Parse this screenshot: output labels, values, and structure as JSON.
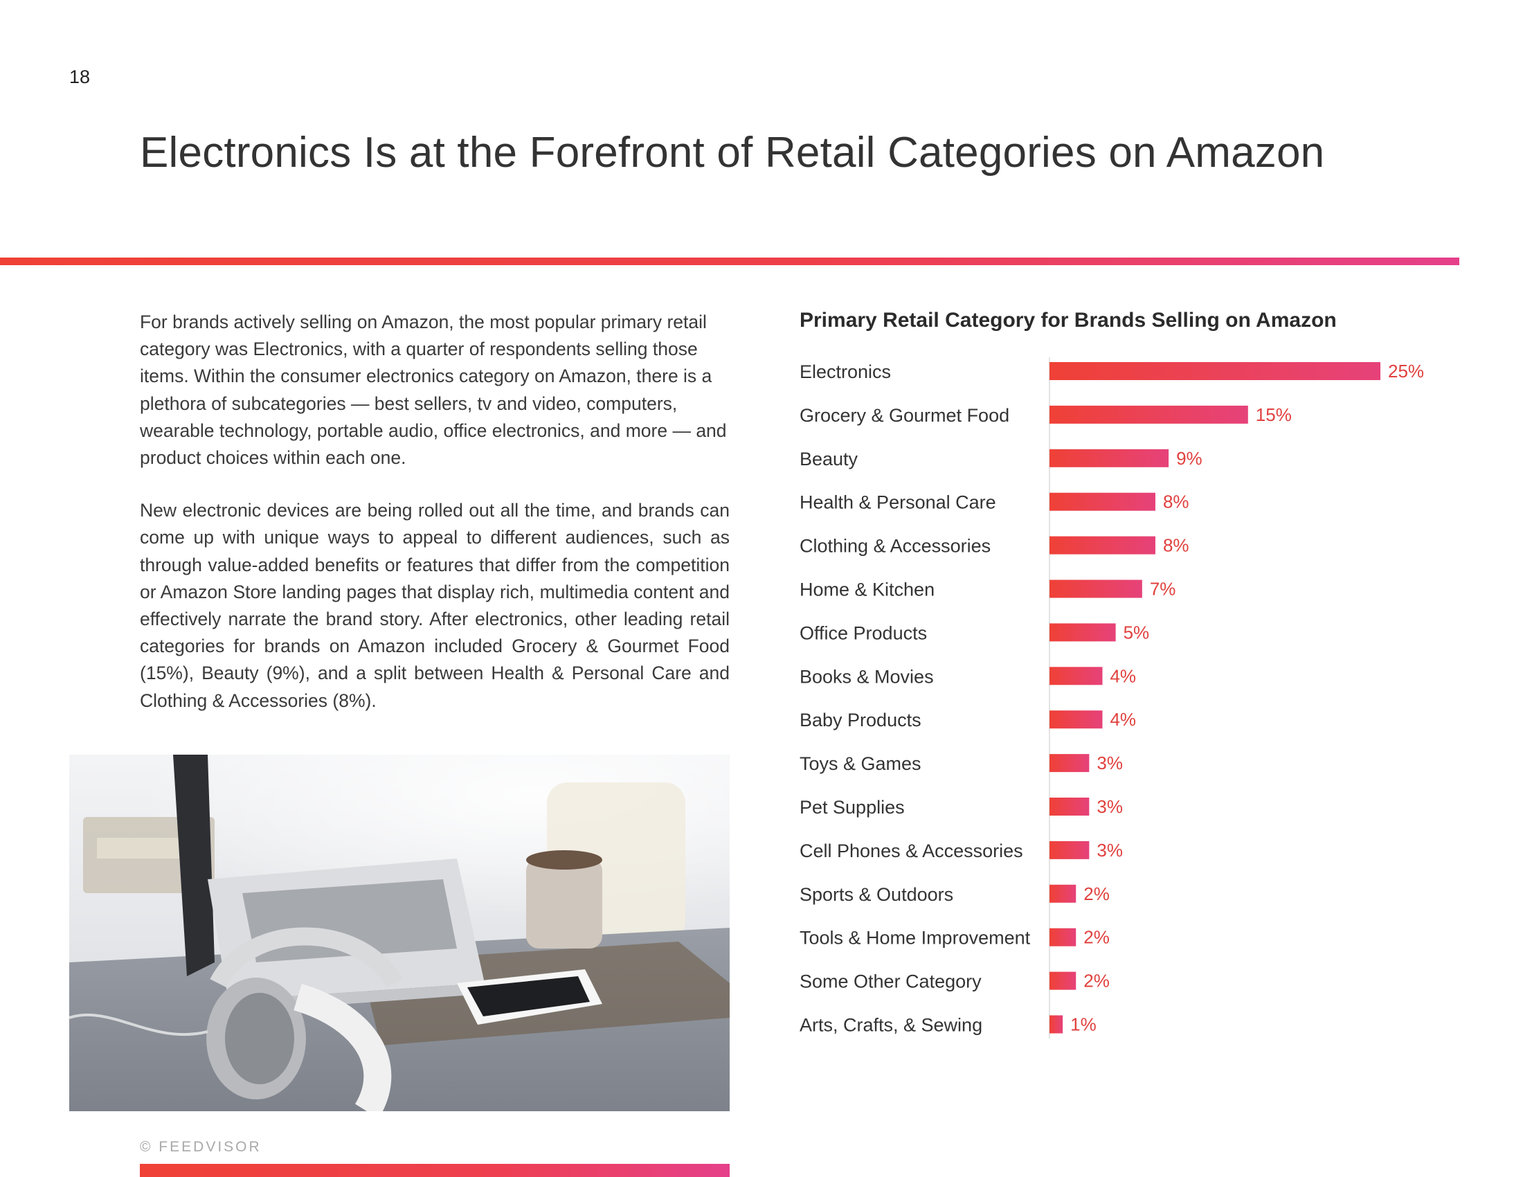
{
  "page": {
    "number": "18",
    "title": "Electronics Is at the Forefront of Retail Categories on Amazon",
    "paragraphs": [
      "For brands actively selling on Amazon, the most popular primary retail category was Electronics, with a quarter of respondents selling those items. Within the consumer electronics category on Amazon, there is a plethora of subcategories — best sellers, tv and video, computers, wearable technology, portable audio, office electronics, and more — and product choices within each one.",
      "New electronic devices are being rolled out all the time, and brands can come up with unique ways to appeal to different audiences, such as through value-added benefits or features that differ from the competition or Amazon Store landing pages that display rich, multimedia content and effectively narrate the brand story. After electronics, other leading retail categories for brands on Amazon included Grocery & Gourmet Food (15%), Beauty (9%), and a split between Health & Personal Care and Clothing & Accessories (8%)."
    ],
    "footer": "© FEEDVISOR"
  },
  "colors": {
    "accent_start": "#ef4136",
    "accent_end": "#e5408a",
    "bar_value_text": "#e0413e",
    "text": "#333333"
  },
  "chart_data": {
    "type": "bar",
    "orientation": "horizontal",
    "title": "Primary Retail Category for Brands Selling on Amazon",
    "categories": [
      "Electronics",
      "Grocery & Gourmet Food",
      "Beauty",
      "Health & Personal Care",
      "Clothing & Accessories",
      "Home & Kitchen",
      "Office Products",
      "Books & Movies",
      "Baby Products",
      "Toys & Games",
      "Pet Supplies",
      "Cell Phones & Accessories",
      "Sports & Outdoors",
      "Tools & Home Improvement",
      "Some Other Category",
      "Arts, Crafts, & Sewing"
    ],
    "values": [
      25,
      15,
      9,
      8,
      8,
      7,
      5,
      4,
      4,
      3,
      3,
      3,
      2,
      2,
      2,
      1
    ],
    "value_labels": [
      "25%",
      "15%",
      "9%",
      "8%",
      "8%",
      "7%",
      "5%",
      "4%",
      "4%",
      "3%",
      "3%",
      "3%",
      "2%",
      "2%",
      "2%",
      "1%"
    ],
    "xlim": [
      0,
      25
    ],
    "grid": false,
    "legend": "none"
  }
}
